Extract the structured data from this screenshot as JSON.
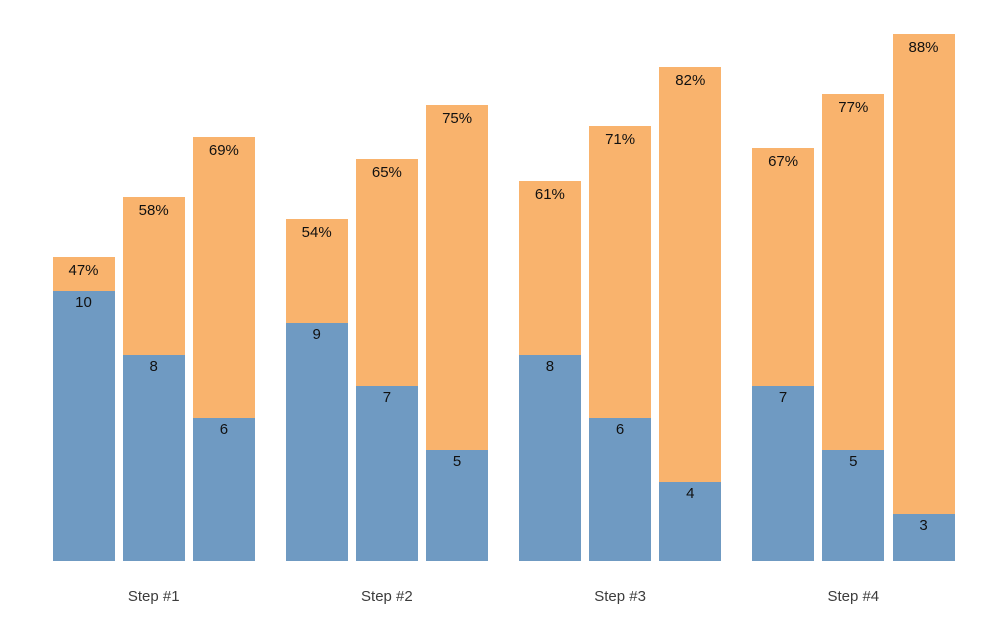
{
  "chart_data": {
    "type": "bar",
    "subtype": "grouped_stacked_funnel",
    "title": "",
    "xlabel": "",
    "ylabel": "",
    "axes_visible": false,
    "gridlines": false,
    "legend": {
      "visible": false
    },
    "background": "#FFFFFF",
    "categories": [
      "Step #1",
      "Step #2",
      "Step #3",
      "Step #4"
    ],
    "groups": [
      {
        "category": "Step #1",
        "bars": [
          {
            "value": 10,
            "value_label": "10",
            "percent": 47,
            "percent_label": "47%"
          },
          {
            "value": 8,
            "value_label": "8",
            "percent": 58,
            "percent_label": "58%"
          },
          {
            "value": 6,
            "value_label": "6",
            "percent": 69,
            "percent_label": "69%"
          }
        ]
      },
      {
        "category": "Step #2",
        "bars": [
          {
            "value": 9,
            "value_label": "9",
            "percent": 54,
            "percent_label": "54%"
          },
          {
            "value": 7,
            "value_label": "7",
            "percent": 65,
            "percent_label": "65%"
          },
          {
            "value": 5,
            "value_label": "5",
            "percent": 75,
            "percent_label": "75%"
          }
        ]
      },
      {
        "category": "Step #3",
        "bars": [
          {
            "value": 8,
            "value_label": "8",
            "percent": 61,
            "percent_label": "61%"
          },
          {
            "value": 6,
            "value_label": "6",
            "percent": 71,
            "percent_label": "71%"
          },
          {
            "value": 4,
            "value_label": "4",
            "percent": 82,
            "percent_label": "82%"
          }
        ]
      },
      {
        "category": "Step #4",
        "bars": [
          {
            "value": 7,
            "value_label": "7",
            "percent": 67,
            "percent_label": "67%"
          },
          {
            "value": 5,
            "value_label": "5",
            "percent": 77,
            "percent_label": "77%"
          },
          {
            "value": 3,
            "value_label": "3",
            "percent": 88,
            "percent_label": "88%"
          }
        ]
      }
    ],
    "colors": {
      "bottom_segment": "#6F9AC2",
      "top_segment": "#F9B36D",
      "bar_label_text": "#111111",
      "axis_label_text": "#3C3C3C"
    }
  }
}
